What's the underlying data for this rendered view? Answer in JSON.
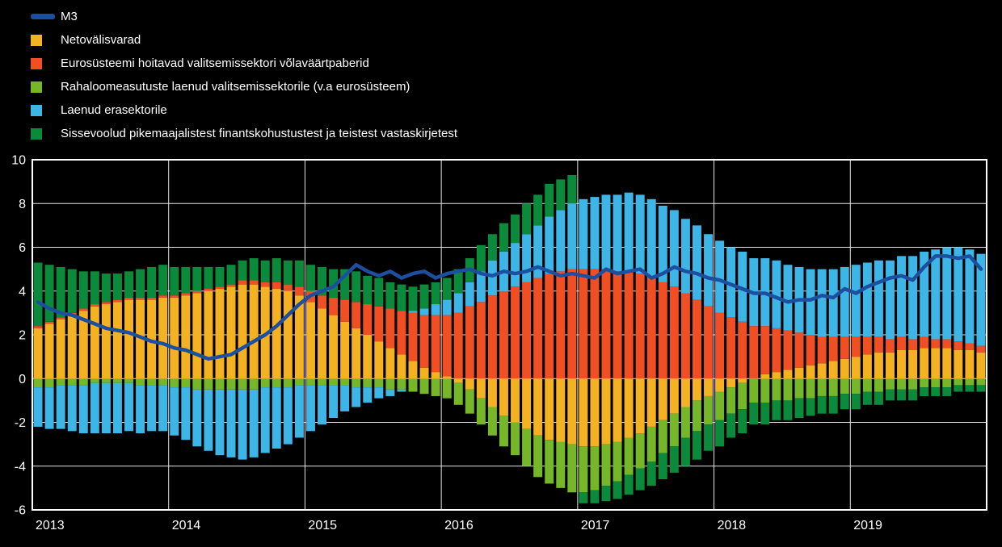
{
  "colors": {
    "background": "#000000",
    "axis": "#ffffff",
    "m3_line": "#1d4fa1",
    "net_foreign_assets": "#f4b223",
    "eurosystem_gov_securities": "#f04e23",
    "mfi_gov_loans": "#76b72a",
    "private_sector_credit": "#3db5e6",
    "ltfl_other": "#0b8a3c"
  },
  "legend": {
    "items": [
      {
        "label": "M3",
        "color": "#1d4fa1",
        "type": "line"
      },
      {
        "label": "Netovälisvarad",
        "color": "#f4b223",
        "type": "box"
      },
      {
        "label": "Eurosüsteemi hoitavad valitsemissektori võlaväärtpaberid",
        "color": "#f04e23",
        "type": "box"
      },
      {
        "label": "Rahaloomeasutuste laenud valitsemissektorile (v.a eurosüsteem)",
        "color": "#76b72a",
        "type": "box"
      },
      {
        "label": "Laenud erasektorile",
        "color": "#3db5e6",
        "type": "box"
      },
      {
        "label": "Sissevoolud pikemaajalistest finantskohustustest ja teistest vastaskirjetest",
        "color": "#0b8a3c",
        "type": "box"
      }
    ]
  },
  "chart_data": {
    "type": "bar",
    "subtype": "stacked-monthly-with-line",
    "title": "",
    "xlabel": "",
    "ylabel": "",
    "ylim": [
      -6,
      10
    ],
    "y_ticks": [
      10,
      8,
      6,
      4,
      2,
      0,
      -2,
      -4,
      -6
    ],
    "x_tick_labels": [
      "2013",
      "2014",
      "2015",
      "2016",
      "2017",
      "2018",
      "2019"
    ],
    "months_per_year": 12,
    "grid": true,
    "legend_position": "top-left",
    "series": [
      {
        "name": "Netovälisvarad",
        "color": "#f4b223",
        "values": [
          2.3,
          2.5,
          2.7,
          2.9,
          3.1,
          3.3,
          3.4,
          3.5,
          3.6,
          3.6,
          3.6,
          3.7,
          3.7,
          3.8,
          3.9,
          4.0,
          4.1,
          4.2,
          4.3,
          4.3,
          4.2,
          4.1,
          4.0,
          3.8,
          3.5,
          3.2,
          2.9,
          2.6,
          2.3,
          2.0,
          1.7,
          1.4,
          1.1,
          0.8,
          0.5,
          0.3,
          0.1,
          -0.2,
          -0.5,
          -0.9,
          -1.3,
          -1.7,
          -2.0,
          -2.3,
          -2.6,
          -2.8,
          -2.9,
          -3.0,
          -3.1,
          -3.1,
          -3.0,
          -2.9,
          -2.7,
          -2.5,
          -2.2,
          -1.9,
          -1.6,
          -1.3,
          -1.0,
          -0.8,
          -0.6,
          -0.4,
          -0.2,
          0.0,
          0.2,
          0.3,
          0.4,
          0.5,
          0.6,
          0.7,
          0.8,
          0.9,
          1.0,
          1.1,
          1.2,
          1.2,
          1.3,
          1.3,
          1.4,
          1.4,
          1.4,
          1.3,
          1.3,
          1.2
        ]
      },
      {
        "name": "Eurosüsteemi hoitavad valitsemissektori võlaväärtpaberid",
        "color": "#f04e23",
        "values": [
          0.1,
          0.1,
          0.1,
          0.1,
          0.1,
          0.1,
          0.1,
          0.1,
          0.1,
          0.1,
          0.1,
          0.1,
          0.1,
          0.1,
          0.1,
          0.1,
          0.1,
          0.1,
          0.2,
          0.2,
          0.2,
          0.3,
          0.3,
          0.4,
          0.5,
          0.6,
          0.8,
          1.0,
          1.2,
          1.4,
          1.6,
          1.8,
          2.0,
          2.2,
          2.4,
          2.6,
          2.8,
          3.0,
          3.3,
          3.5,
          3.8,
          4.0,
          4.2,
          4.4,
          4.6,
          4.8,
          4.9,
          5.0,
          5.0,
          5.0,
          5.0,
          4.9,
          4.9,
          4.8,
          4.6,
          4.4,
          4.2,
          3.9,
          3.6,
          3.3,
          3.0,
          2.8,
          2.6,
          2.4,
          2.2,
          2.0,
          1.8,
          1.6,
          1.4,
          1.2,
          1.1,
          1.0,
          0.9,
          0.8,
          0.7,
          0.6,
          0.6,
          0.5,
          0.5,
          0.4,
          0.4,
          0.4,
          0.3,
          0.3
        ]
      },
      {
        "name": "Rahaloomeasutuste laenud valitsemissektorile (v.a eurosüsteem)",
        "color": "#76b72a",
        "values": [
          -0.4,
          -0.4,
          -0.3,
          -0.3,
          -0.3,
          -0.2,
          -0.2,
          -0.2,
          -0.2,
          -0.3,
          -0.3,
          -0.3,
          -0.4,
          -0.4,
          -0.5,
          -0.5,
          -0.5,
          -0.5,
          -0.5,
          -0.5,
          -0.4,
          -0.4,
          -0.4,
          -0.3,
          -0.3,
          -0.3,
          -0.3,
          -0.3,
          -0.4,
          -0.4,
          -0.4,
          -0.5,
          -0.5,
          -0.6,
          -0.7,
          -0.8,
          -0.9,
          -1.0,
          -1.1,
          -1.2,
          -1.3,
          -1.4,
          -1.5,
          -1.7,
          -1.9,
          -2.0,
          -2.1,
          -2.2,
          -2.1,
          -2.0,
          -1.9,
          -1.8,
          -1.7,
          -1.6,
          -1.6,
          -1.5,
          -1.5,
          -1.4,
          -1.4,
          -1.3,
          -1.3,
          -1.2,
          -1.2,
          -1.1,
          -1.1,
          -1.0,
          -1.0,
          -0.9,
          -0.9,
          -0.8,
          -0.8,
          -0.7,
          -0.7,
          -0.6,
          -0.6,
          -0.5,
          -0.5,
          -0.5,
          -0.4,
          -0.4,
          -0.4,
          -0.3,
          -0.3,
          -0.3
        ]
      },
      {
        "name": "Laenud erasektorile",
        "color": "#3db5e6",
        "values": [
          -1.8,
          -1.9,
          -2.0,
          -2.1,
          -2.2,
          -2.3,
          -2.3,
          -2.3,
          -2.2,
          -2.2,
          -2.1,
          -2.1,
          -2.2,
          -2.4,
          -2.6,
          -2.8,
          -3.0,
          -3.1,
          -3.2,
          -3.1,
          -3.0,
          -2.8,
          -2.6,
          -2.4,
          -2.1,
          -1.8,
          -1.5,
          -1.2,
          -0.9,
          -0.7,
          -0.5,
          -0.3,
          -0.1,
          0.1,
          0.3,
          0.5,
          0.7,
          0.9,
          1.1,
          1.4,
          1.6,
          1.8,
          2.0,
          2.2,
          2.4,
          2.6,
          2.8,
          3.0,
          3.2,
          3.3,
          3.4,
          3.5,
          3.6,
          3.6,
          3.6,
          3.5,
          3.5,
          3.4,
          3.4,
          3.3,
          3.3,
          3.2,
          3.2,
          3.1,
          3.1,
          3.1,
          3.0,
          3.0,
          3.0,
          3.1,
          3.1,
          3.2,
          3.3,
          3.4,
          3.5,
          3.6,
          3.7,
          3.8,
          3.9,
          4.1,
          4.2,
          4.3,
          4.3,
          4.2
        ]
      },
      {
        "name": "Sissevoolud pikemaajalistest finantskohustustest ja teistest vastaskirjetest",
        "color": "#0b8a3c",
        "values": [
          2.9,
          2.6,
          2.3,
          2.0,
          1.7,
          1.5,
          1.3,
          1.2,
          1.2,
          1.3,
          1.4,
          1.4,
          1.3,
          1.2,
          1.1,
          1.0,
          0.9,
          0.9,
          0.9,
          1.0,
          1.0,
          1.1,
          1.1,
          1.2,
          1.2,
          1.3,
          1.3,
          1.4,
          1.4,
          1.3,
          1.3,
          1.2,
          1.2,
          1.1,
          1.1,
          1.0,
          1.0,
          1.1,
          1.1,
          1.2,
          1.2,
          1.3,
          1.3,
          1.4,
          1.4,
          1.5,
          1.4,
          1.3,
          -0.5,
          -0.6,
          -0.7,
          -0.8,
          -0.9,
          -1.0,
          -1.1,
          -1.2,
          -1.2,
          -1.3,
          -1.3,
          -1.2,
          -1.2,
          -1.1,
          -1.1,
          -1.0,
          -1.0,
          -0.9,
          -0.9,
          -0.9,
          -0.8,
          -0.8,
          -0.8,
          -0.7,
          -0.7,
          -0.6,
          -0.6,
          -0.5,
          -0.5,
          -0.5,
          -0.4,
          -0.4,
          -0.4,
          -0.3,
          -0.3,
          -0.3
        ]
      }
    ],
    "line": {
      "name": "M3",
      "color": "#1d4fa1",
      "values": [
        3.5,
        3.2,
        3.0,
        2.9,
        2.7,
        2.5,
        2.3,
        2.2,
        2.1,
        1.9,
        1.7,
        1.6,
        1.4,
        1.3,
        1.1,
        0.9,
        1.0,
        1.1,
        1.4,
        1.7,
        2.0,
        2.4,
        2.9,
        3.4,
        3.8,
        4.0,
        4.2,
        4.7,
        5.2,
        4.9,
        4.7,
        4.9,
        4.6,
        4.8,
        4.9,
        4.6,
        4.8,
        4.9,
        5.0,
        4.8,
        4.7,
        4.9,
        4.8,
        4.9,
        5.1,
        4.9,
        4.7,
        4.8,
        4.7,
        4.6,
        5.0,
        4.8,
        4.9,
        5.0,
        4.6,
        4.8,
        5.1,
        4.9,
        4.8,
        4.6,
        4.5,
        4.3,
        4.1,
        3.9,
        3.9,
        3.7,
        3.5,
        3.6,
        3.6,
        3.8,
        3.7,
        4.1,
        3.9,
        4.2,
        4.4,
        4.6,
        4.7,
        4.5,
        5.1,
        5.6,
        5.6,
        5.5,
        5.6,
        5.0
      ]
    }
  }
}
